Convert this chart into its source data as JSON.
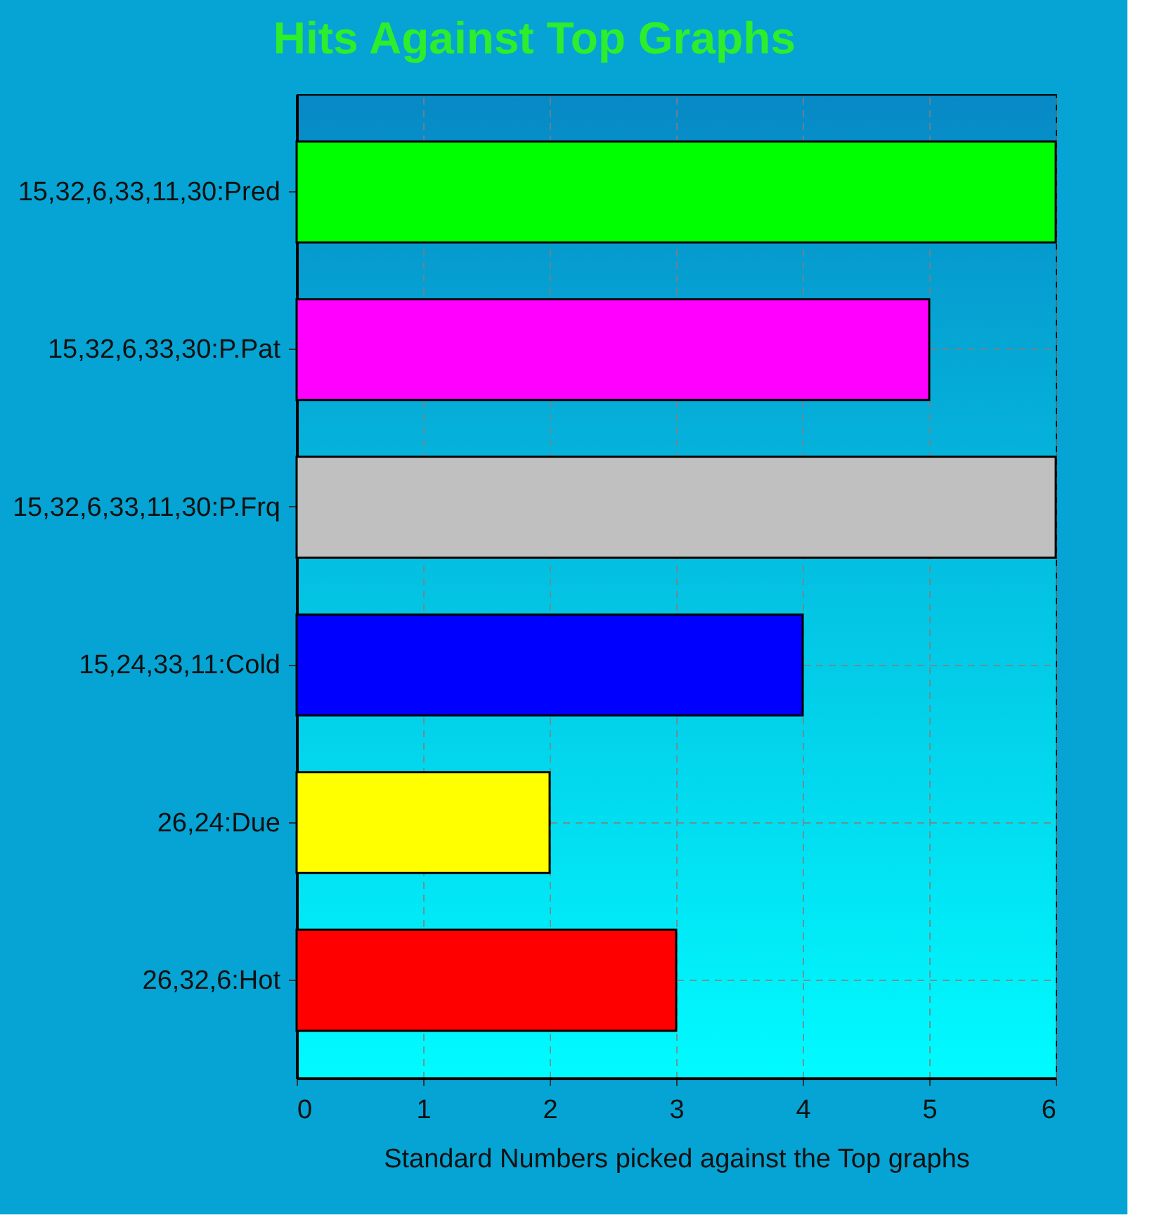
{
  "chart_data": {
    "type": "bar",
    "orientation": "horizontal",
    "title": "Hits Against Top Graphs",
    "xlabel": "Standard Numbers picked against the Top graphs",
    "categories": [
      "15,32,6,33,11,30:Pred",
      "15,32,6,33,30:P.Pat",
      "15,32,6,33,11,30:P.Frq",
      "15,24,33,11:Cold",
      "26,24:Due",
      "26,32,6:Hot"
    ],
    "values": [
      6,
      5,
      6,
      4,
      2,
      3
    ],
    "colors": [
      "#00ff00",
      "#ff00ff",
      "#c0c0c0",
      "#0000ff",
      "#ffff00",
      "#ff0000"
    ],
    "xlim": [
      0,
      6
    ],
    "xticks": [
      0,
      1,
      2,
      3,
      4,
      5,
      6
    ],
    "grid": true
  }
}
